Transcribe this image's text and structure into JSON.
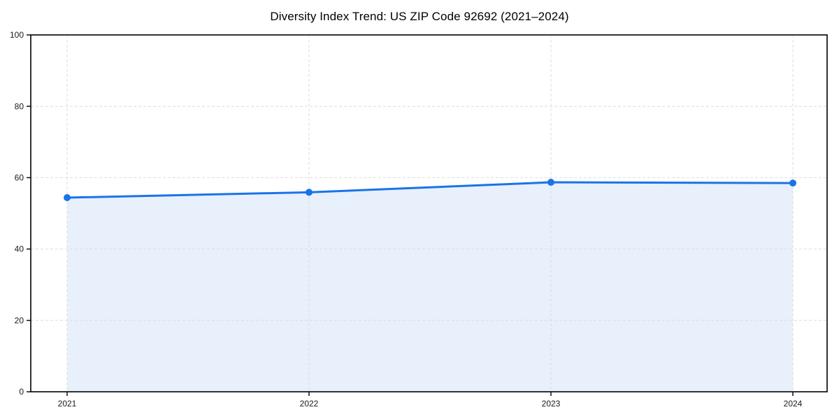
{
  "page": {
    "title": "Diversity Index Trend: US ZIP Code 92692 (2021–2024)"
  },
  "chart_data": {
    "type": "area",
    "title": "Diversity Index Trend: US ZIP Code 92692 (2021–2024)",
    "categories": [
      "2021",
      "2022",
      "2023",
      "2024"
    ],
    "series": [
      {
        "name": "Diversity Index",
        "values": [
          54.4,
          55.9,
          58.7,
          58.5
        ]
      }
    ],
    "xlabel": "",
    "ylabel": "",
    "ylim": [
      0,
      100
    ],
    "yticks": [
      0,
      20,
      40,
      60,
      80,
      100
    ],
    "grid": true,
    "grid_style": "dashed",
    "legend_position": "none",
    "colors": {
      "line": "#1a73e8",
      "marker": "#1a73e8",
      "fill": "#e8f0fc",
      "grid": "#dcdcdc",
      "axis": "#000000",
      "tick_label": "#1a1a1a",
      "background": "#ffffff"
    }
  }
}
